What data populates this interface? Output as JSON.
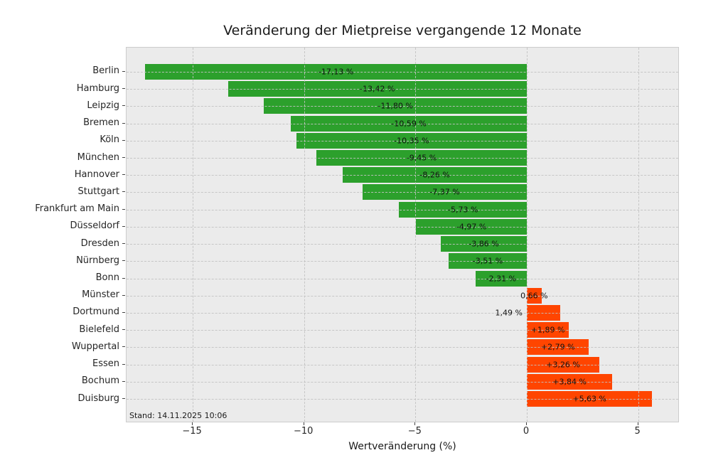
{
  "title": "Veränderung der Mietpreise vergangende 12 Monate",
  "xlabel": "Wertveränderung (%)",
  "stand_note": "Stand: 14.11.2025 10:06",
  "colors": {
    "negative_bar": "#2ca02c",
    "positive_bar": "#ff4500",
    "plot_background": "#ebebeb",
    "grid": "#c3c3c3"
  },
  "x_ticks": [
    {
      "value": -15,
      "label": "−15"
    },
    {
      "value": -10,
      "label": "−10"
    },
    {
      "value": -5,
      "label": "−5"
    },
    {
      "value": 0,
      "label": "0"
    },
    {
      "value": 5,
      "label": "5"
    }
  ],
  "chart_data": {
    "type": "bar",
    "orientation": "horizontal",
    "title": "Veränderung der Mietpreise vergangende 12 Monate",
    "xlabel": "Wertveränderung (%)",
    "ylabel": "",
    "xlim": [
      -18.0,
      6.9
    ],
    "grid": true,
    "annotation": "Stand: 14.11.2025 10:06",
    "categories": [
      "Berlin",
      "Hamburg",
      "Leipzig",
      "Bremen",
      "Köln",
      "München",
      "Hannover",
      "Stuttgart",
      "Frankfurt am Main",
      "Düsseldorf",
      "Dresden",
      "Nürnberg",
      "Bonn",
      "Münster",
      "Dortmund",
      "Bielefeld",
      "Wuppertal",
      "Essen",
      "Bochum",
      "Duisburg"
    ],
    "values": [
      -17.13,
      -13.42,
      -11.8,
      -10.59,
      -10.35,
      -9.45,
      -8.26,
      -7.37,
      -5.73,
      -4.97,
      -3.86,
      -3.51,
      -2.31,
      0.66,
      1.49,
      1.89,
      2.79,
      3.26,
      3.84,
      5.63
    ],
    "bar_labels": [
      "-17,13 %",
      "-13,42 %",
      "-11,80 %",
      "-10,59 %",
      "-10,35 %",
      "-9,45 %",
      "-8,26 %",
      "-7,37 %",
      "-5,73 %",
      "-4,97 %",
      "-3,86 %",
      "-3,51 %",
      "-2,31 %",
      "0,66 %",
      "1,49 %",
      "+1,89 %",
      "+2,79 %",
      "+3,26 %",
      "+3,84 %",
      "+5,63 %"
    ],
    "label_placement": [
      "center",
      "center",
      "center",
      "center",
      "center",
      "center",
      "center",
      "center",
      "center",
      "center",
      "center",
      "center",
      "center",
      "center",
      "out-left",
      "center",
      "center",
      "center",
      "center",
      "center"
    ]
  }
}
